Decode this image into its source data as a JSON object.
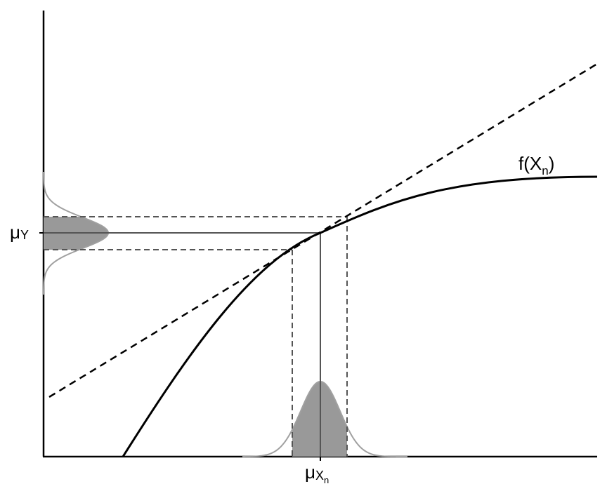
{
  "diagram": {
    "curve_label_main": "f(X",
    "curve_label_sub": "n",
    "curve_label_close": ")",
    "y_mean_label_main": "μ",
    "y_mean_label_sub": "Y",
    "x_mean_label_main": "μ",
    "x_mean_label_sub1": "X",
    "x_mean_label_sub2": "n"
  },
  "colors": {
    "axis": "#000000",
    "curve": "#000000",
    "tangent": "#000000",
    "guide": "#555555",
    "density_fill": "#999999",
    "density_outline": "#a0a0a0"
  }
}
